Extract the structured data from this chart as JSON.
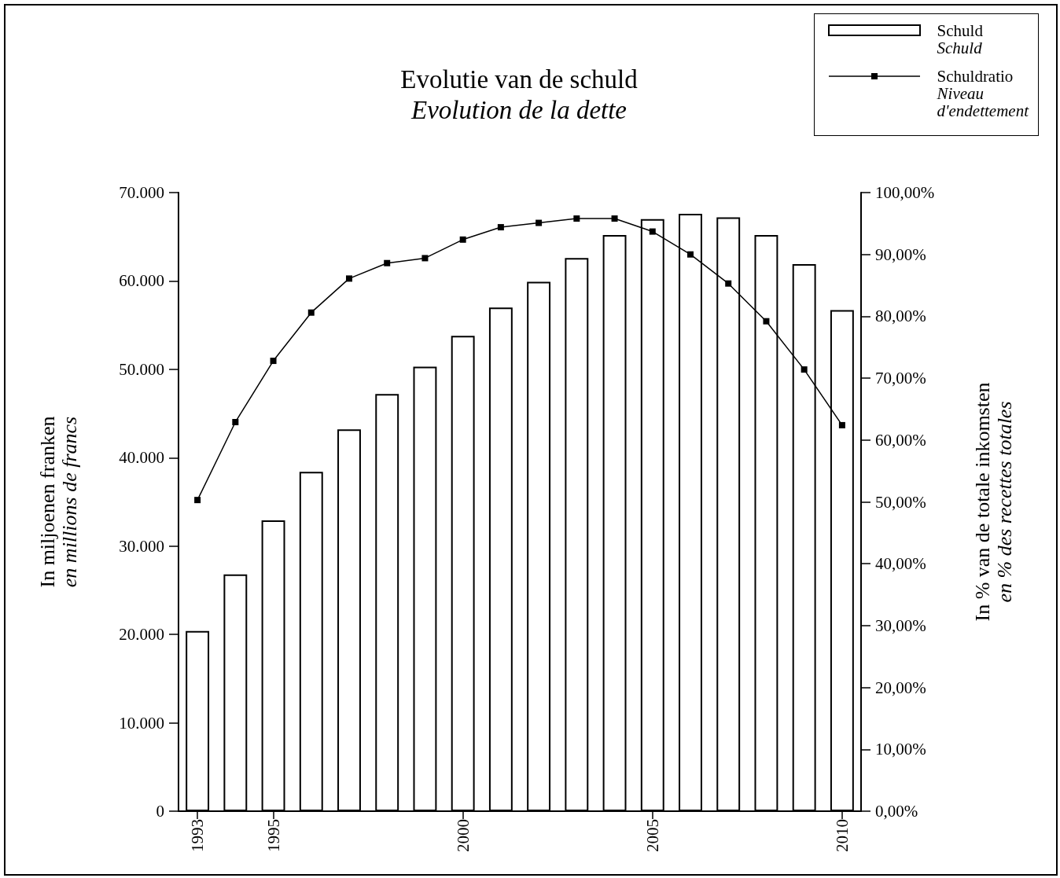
{
  "chart_data": {
    "type": "bar",
    "title": "Evolutie van de schuld",
    "subtitle": "Evolution de la dette",
    "ylabel": "In miljoenen franken\nen millions de francs",
    "y2label": "In % van de totale inkomsten\nen % des recettes totales",
    "categories": [
      "1993",
      null,
      "1995",
      null,
      null,
      null,
      null,
      "2000",
      null,
      null,
      null,
      null,
      "2005",
      null,
      null,
      null,
      null,
      "2010"
    ],
    "series": [
      {
        "name": "Schuld\nSchuld",
        "color": "#ffffff",
        "values": [
          20400,
          26800,
          32900,
          38400,
          43200,
          47200,
          50300,
          53800,
          57000,
          59900,
          62600,
          65200,
          67000,
          67600,
          67200,
          65200,
          61900,
          56700
        ]
      },
      {
        "name": "Schuldratio\nNiveau\nd'endettement",
        "type": "line",
        "axis": "y2",
        "color": "#000000",
        "values": [
          50.3,
          62.9,
          72.8,
          80.6,
          86.1,
          88.6,
          89.4,
          92.4,
          94.4,
          95.1,
          95.8,
          95.8,
          93.7,
          90.0,
          85.3,
          79.2,
          71.4,
          62.4
        ]
      }
    ],
    "ylim": [
      0,
      70000
    ],
    "yticks": [
      {
        "value": 0,
        "label": "0"
      },
      {
        "value": 10000,
        "label": "10.000"
      },
      {
        "value": 20000,
        "label": "20.000"
      },
      {
        "value": 30000,
        "label": "30.000"
      },
      {
        "value": 40000,
        "label": "40.000"
      },
      {
        "value": 50000,
        "label": "50.000"
      },
      {
        "value": 60000,
        "label": "60.000"
      },
      {
        "value": 70000,
        "label": "70.000"
      }
    ],
    "y2lim": [
      0,
      100
    ],
    "y2ticks": [
      {
        "value": 0,
        "label": "0,00%"
      },
      {
        "value": 10,
        "label": "10,00%"
      },
      {
        "value": 20,
        "label": "20,00%"
      },
      {
        "value": 30,
        "label": "30,00%"
      },
      {
        "value": 40,
        "label": "40,00%"
      },
      {
        "value": 50,
        "label": "50,00%"
      },
      {
        "value": 60,
        "label": "60,00%"
      },
      {
        "value": 70,
        "label": "70,00%"
      },
      {
        "value": 80,
        "label": "80,00%"
      },
      {
        "value": 90,
        "label": "90,00%"
      },
      {
        "value": 100,
        "label": "100,00%"
      }
    ],
    "grid": false,
    "legend": "top right",
    "marker": "square"
  }
}
